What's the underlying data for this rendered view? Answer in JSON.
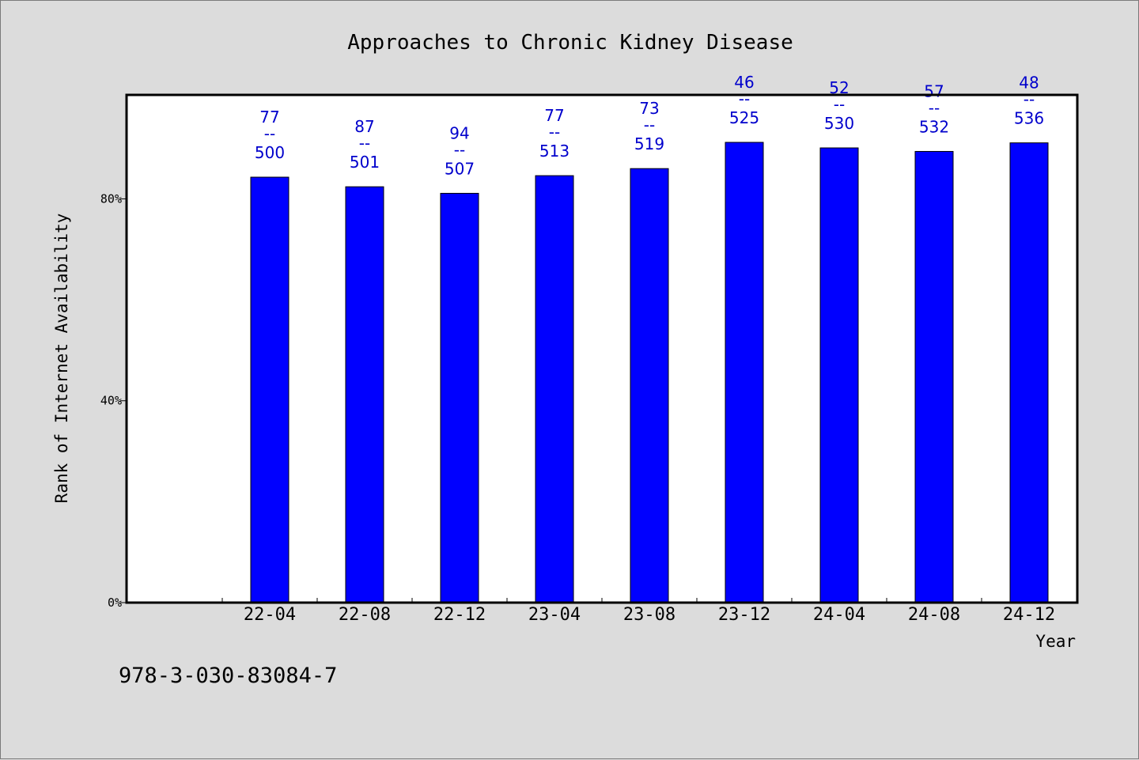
{
  "chart_data": {
    "type": "bar",
    "title": "Approaches to Chronic Kidney Disease",
    "xlabel": "Year",
    "ylabel": "Rank of Internet Availability",
    "categories": [
      "22-04",
      "22-08",
      "22-12",
      "23-04",
      "23-08",
      "23-12",
      "24-04",
      "24-08",
      "24-12"
    ],
    "values": [
      84.3,
      82.4,
      81.1,
      84.6,
      86.0,
      91.2,
      90.1,
      89.4,
      91.1
    ],
    "point_labels": [
      {
        "top": "77",
        "sep": "--",
        "bottom": "500"
      },
      {
        "top": "87",
        "sep": "--",
        "bottom": "501"
      },
      {
        "top": "94",
        "sep": "--",
        "bottom": "507"
      },
      {
        "top": "77",
        "sep": "--",
        "bottom": "513"
      },
      {
        "top": "73",
        "sep": "--",
        "bottom": "519"
      },
      {
        "top": "46",
        "sep": "--",
        "bottom": "525"
      },
      {
        "top": "52",
        "sep": "--",
        "bottom": "530"
      },
      {
        "top": "57",
        "sep": "--",
        "bottom": "532"
      },
      {
        "top": "48",
        "sep": "--",
        "bottom": "536"
      }
    ],
    "yticks": [
      {
        "value": 0,
        "label": "0%"
      },
      {
        "value": 40,
        "label": "40%"
      },
      {
        "value": 80,
        "label": "80%"
      }
    ],
    "ylim": [
      0,
      100.6
    ],
    "grid": false,
    "legend": "none",
    "bar_color": "#0000ff",
    "label_color": "#0000cc"
  },
  "footer": {
    "isbn": "978-3-030-83084-7"
  }
}
